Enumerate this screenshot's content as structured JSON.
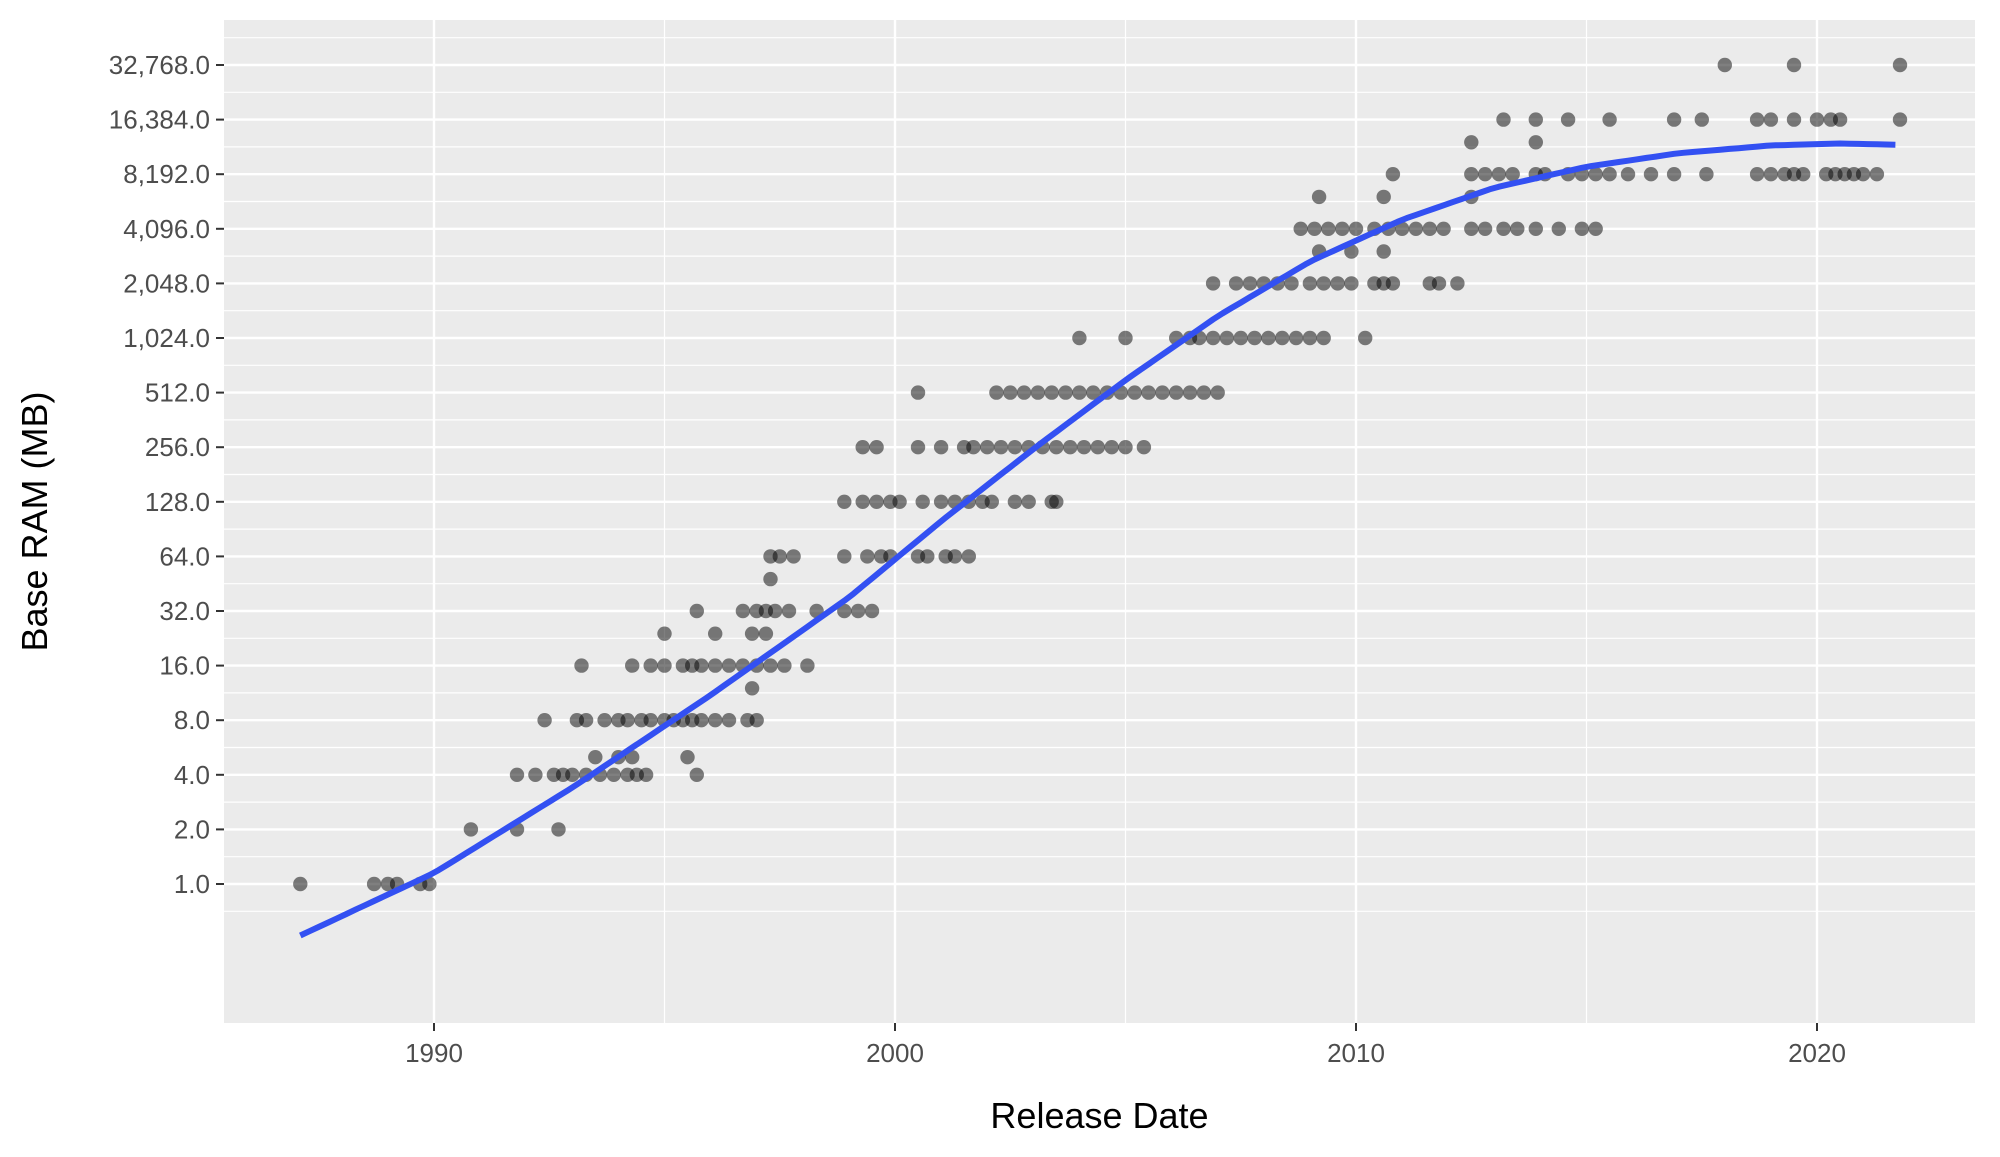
{
  "chart_data": {
    "type": "scatter",
    "xlabel": "Release Date",
    "ylabel": "Base RAM (MB)",
    "x_scale": "date",
    "y_scale": "log2",
    "xlim": [
      1985.5,
      2023.5
    ],
    "ylim": [
      0.3,
      50000
    ],
    "grid": true,
    "x_ticks": [
      1990,
      2000,
      2010,
      2020
    ],
    "x_tick_labels": [
      "1990",
      "2000",
      "2010",
      "2020"
    ],
    "y_ticks": [
      1,
      2,
      4,
      8,
      16,
      32,
      64,
      128,
      256,
      512,
      1024,
      2048,
      4096,
      8192,
      16384,
      32768
    ],
    "y_tick_labels": [
      "1.0",
      "2.0",
      "4.0",
      "8.0",
      "16.0",
      "32.0",
      "64.0",
      "128.0",
      "256.0",
      "512.0",
      "1,024.0",
      "2,048.0",
      "4,096.0",
      "8,192.0",
      "16,384.0",
      "32,768.0"
    ],
    "colors": {
      "panel": "#ebebeb",
      "grid": "#ffffff",
      "points": "#000000",
      "trend": "#3350f2",
      "ribbon": "#999999"
    },
    "points": [
      {
        "year": 1987.1,
        "ram": 1
      },
      {
        "year": 1988.7,
        "ram": 1
      },
      {
        "year": 1989.0,
        "ram": 1
      },
      {
        "year": 1989.2,
        "ram": 1
      },
      {
        "year": 1989.7,
        "ram": 1
      },
      {
        "year": 1989.9,
        "ram": 1
      },
      {
        "year": 1990.8,
        "ram": 2
      },
      {
        "year": 1991.8,
        "ram": 2
      },
      {
        "year": 1992.7,
        "ram": 2
      },
      {
        "year": 1991.8,
        "ram": 4
      },
      {
        "year": 1992.2,
        "ram": 4
      },
      {
        "year": 1992.6,
        "ram": 4
      },
      {
        "year": 1992.8,
        "ram": 4
      },
      {
        "year": 1993.0,
        "ram": 4
      },
      {
        "year": 1993.3,
        "ram": 4
      },
      {
        "year": 1993.6,
        "ram": 4
      },
      {
        "year": 1993.9,
        "ram": 4
      },
      {
        "year": 1994.2,
        "ram": 4
      },
      {
        "year": 1994.4,
        "ram": 4
      },
      {
        "year": 1994.6,
        "ram": 4
      },
      {
        "year": 1995.7,
        "ram": 4
      },
      {
        "year": 1993.5,
        "ram": 5
      },
      {
        "year": 1994.0,
        "ram": 5
      },
      {
        "year": 1994.3,
        "ram": 5
      },
      {
        "year": 1995.5,
        "ram": 5
      },
      {
        "year": 1992.4,
        "ram": 8
      },
      {
        "year": 1993.1,
        "ram": 8
      },
      {
        "year": 1993.3,
        "ram": 8
      },
      {
        "year": 1993.7,
        "ram": 8
      },
      {
        "year": 1994.0,
        "ram": 8
      },
      {
        "year": 1994.2,
        "ram": 8
      },
      {
        "year": 1994.5,
        "ram": 8
      },
      {
        "year": 1994.7,
        "ram": 8
      },
      {
        "year": 1995.0,
        "ram": 8
      },
      {
        "year": 1995.2,
        "ram": 8
      },
      {
        "year": 1995.4,
        "ram": 8
      },
      {
        "year": 1995.6,
        "ram": 8
      },
      {
        "year": 1995.8,
        "ram": 8
      },
      {
        "year": 1996.1,
        "ram": 8
      },
      {
        "year": 1996.4,
        "ram": 8
      },
      {
        "year": 1996.8,
        "ram": 8
      },
      {
        "year": 1997.0,
        "ram": 8
      },
      {
        "year": 1993.2,
        "ram": 16
      },
      {
        "year": 1994.3,
        "ram": 16
      },
      {
        "year": 1994.7,
        "ram": 16
      },
      {
        "year": 1995.0,
        "ram": 16
      },
      {
        "year": 1995.4,
        "ram": 16
      },
      {
        "year": 1995.6,
        "ram": 16
      },
      {
        "year": 1995.8,
        "ram": 16
      },
      {
        "year": 1996.1,
        "ram": 16
      },
      {
        "year": 1996.4,
        "ram": 16
      },
      {
        "year": 1996.7,
        "ram": 16
      },
      {
        "year": 1997.0,
        "ram": 16
      },
      {
        "year": 1997.3,
        "ram": 16
      },
      {
        "year": 1997.6,
        "ram": 16
      },
      {
        "year": 1998.1,
        "ram": 16
      },
      {
        "year": 1996.9,
        "ram": 12
      },
      {
        "year": 1995.0,
        "ram": 24
      },
      {
        "year": 1996.1,
        "ram": 24
      },
      {
        "year": 1996.9,
        "ram": 24
      },
      {
        "year": 1997.2,
        "ram": 24
      },
      {
        "year": 1995.7,
        "ram": 32
      },
      {
        "year": 1996.7,
        "ram": 32
      },
      {
        "year": 1997.0,
        "ram": 32
      },
      {
        "year": 1997.2,
        "ram": 32
      },
      {
        "year": 1997.4,
        "ram": 32
      },
      {
        "year": 1997.7,
        "ram": 32
      },
      {
        "year": 1998.3,
        "ram": 32
      },
      {
        "year": 1998.9,
        "ram": 32
      },
      {
        "year": 1999.2,
        "ram": 32
      },
      {
        "year": 1999.5,
        "ram": 32
      },
      {
        "year": 1997.3,
        "ram": 48
      },
      {
        "year": 1997.3,
        "ram": 64
      },
      {
        "year": 1997.5,
        "ram": 64
      },
      {
        "year": 1997.8,
        "ram": 64
      },
      {
        "year": 1998.9,
        "ram": 64
      },
      {
        "year": 1999.4,
        "ram": 64
      },
      {
        "year": 1999.7,
        "ram": 64
      },
      {
        "year": 1999.9,
        "ram": 64
      },
      {
        "year": 2000.5,
        "ram": 64
      },
      {
        "year": 2000.7,
        "ram": 64
      },
      {
        "year": 2001.1,
        "ram": 64
      },
      {
        "year": 2001.3,
        "ram": 64
      },
      {
        "year": 2001.6,
        "ram": 64
      },
      {
        "year": 1998.9,
        "ram": 128
      },
      {
        "year": 1999.3,
        "ram": 128
      },
      {
        "year": 1999.6,
        "ram": 128
      },
      {
        "year": 1999.9,
        "ram": 128
      },
      {
        "year": 2000.1,
        "ram": 128
      },
      {
        "year": 2000.6,
        "ram": 128
      },
      {
        "year": 2001.0,
        "ram": 128
      },
      {
        "year": 2001.3,
        "ram": 128
      },
      {
        "year": 2001.6,
        "ram": 128
      },
      {
        "year": 2001.9,
        "ram": 128
      },
      {
        "year": 2002.1,
        "ram": 128
      },
      {
        "year": 2002.6,
        "ram": 128
      },
      {
        "year": 2002.9,
        "ram": 128
      },
      {
        "year": 2003.4,
        "ram": 128
      },
      {
        "year": 2003.5,
        "ram": 128
      },
      {
        "year": 1999.3,
        "ram": 256
      },
      {
        "year": 1999.6,
        "ram": 256
      },
      {
        "year": 2000.5,
        "ram": 256
      },
      {
        "year": 2001.0,
        "ram": 256
      },
      {
        "year": 2001.5,
        "ram": 256
      },
      {
        "year": 2001.7,
        "ram": 256
      },
      {
        "year": 2002.0,
        "ram": 256
      },
      {
        "year": 2002.3,
        "ram": 256
      },
      {
        "year": 2002.6,
        "ram": 256
      },
      {
        "year": 2002.9,
        "ram": 256
      },
      {
        "year": 2003.2,
        "ram": 256
      },
      {
        "year": 2003.5,
        "ram": 256
      },
      {
        "year": 2003.8,
        "ram": 256
      },
      {
        "year": 2004.1,
        "ram": 256
      },
      {
        "year": 2004.4,
        "ram": 256
      },
      {
        "year": 2004.7,
        "ram": 256
      },
      {
        "year": 2005.0,
        "ram": 256
      },
      {
        "year": 2005.4,
        "ram": 256
      },
      {
        "year": 2000.5,
        "ram": 512
      },
      {
        "year": 2002.2,
        "ram": 512
      },
      {
        "year": 2002.5,
        "ram": 512
      },
      {
        "year": 2002.8,
        "ram": 512
      },
      {
        "year": 2003.1,
        "ram": 512
      },
      {
        "year": 2003.4,
        "ram": 512
      },
      {
        "year": 2003.7,
        "ram": 512
      },
      {
        "year": 2004.0,
        "ram": 512
      },
      {
        "year": 2004.3,
        "ram": 512
      },
      {
        "year": 2004.6,
        "ram": 512
      },
      {
        "year": 2004.9,
        "ram": 512
      },
      {
        "year": 2005.2,
        "ram": 512
      },
      {
        "year": 2005.5,
        "ram": 512
      },
      {
        "year": 2005.8,
        "ram": 512
      },
      {
        "year": 2006.1,
        "ram": 512
      },
      {
        "year": 2006.4,
        "ram": 512
      },
      {
        "year": 2006.7,
        "ram": 512
      },
      {
        "year": 2007.0,
        "ram": 512
      },
      {
        "year": 2004.0,
        "ram": 1024
      },
      {
        "year": 2005.0,
        "ram": 1024
      },
      {
        "year": 2006.1,
        "ram": 1024
      },
      {
        "year": 2006.4,
        "ram": 1024
      },
      {
        "year": 2006.6,
        "ram": 1024
      },
      {
        "year": 2006.9,
        "ram": 1024
      },
      {
        "year": 2007.2,
        "ram": 1024
      },
      {
        "year": 2007.5,
        "ram": 1024
      },
      {
        "year": 2007.8,
        "ram": 1024
      },
      {
        "year": 2008.1,
        "ram": 1024
      },
      {
        "year": 2008.4,
        "ram": 1024
      },
      {
        "year": 2008.7,
        "ram": 1024
      },
      {
        "year": 2009.0,
        "ram": 1024
      },
      {
        "year": 2009.3,
        "ram": 1024
      },
      {
        "year": 2010.2,
        "ram": 1024
      },
      {
        "year": 2006.9,
        "ram": 2048
      },
      {
        "year": 2007.4,
        "ram": 2048
      },
      {
        "year": 2007.7,
        "ram": 2048
      },
      {
        "year": 2008.0,
        "ram": 2048
      },
      {
        "year": 2008.3,
        "ram": 2048
      },
      {
        "year": 2008.6,
        "ram": 2048
      },
      {
        "year": 2009.0,
        "ram": 2048
      },
      {
        "year": 2009.3,
        "ram": 2048
      },
      {
        "year": 2009.6,
        "ram": 2048
      },
      {
        "year": 2009.9,
        "ram": 2048
      },
      {
        "year": 2010.4,
        "ram": 2048
      },
      {
        "year": 2010.6,
        "ram": 2048
      },
      {
        "year": 2010.8,
        "ram": 2048
      },
      {
        "year": 2011.6,
        "ram": 2048
      },
      {
        "year": 2011.8,
        "ram": 2048
      },
      {
        "year": 2012.2,
        "ram": 2048
      },
      {
        "year": 2009.2,
        "ram": 3072
      },
      {
        "year": 2009.9,
        "ram": 3072
      },
      {
        "year": 2010.6,
        "ram": 3072
      },
      {
        "year": 2008.8,
        "ram": 4096
      },
      {
        "year": 2009.1,
        "ram": 4096
      },
      {
        "year": 2009.4,
        "ram": 4096
      },
      {
        "year": 2009.7,
        "ram": 4096
      },
      {
        "year": 2010.0,
        "ram": 4096
      },
      {
        "year": 2010.4,
        "ram": 4096
      },
      {
        "year": 2010.7,
        "ram": 4096
      },
      {
        "year": 2011.0,
        "ram": 4096
      },
      {
        "year": 2011.3,
        "ram": 4096
      },
      {
        "year": 2011.6,
        "ram": 4096
      },
      {
        "year": 2011.9,
        "ram": 4096
      },
      {
        "year": 2012.5,
        "ram": 4096
      },
      {
        "year": 2012.8,
        "ram": 4096
      },
      {
        "year": 2013.2,
        "ram": 4096
      },
      {
        "year": 2013.5,
        "ram": 4096
      },
      {
        "year": 2013.9,
        "ram": 4096
      },
      {
        "year": 2014.4,
        "ram": 4096
      },
      {
        "year": 2014.9,
        "ram": 4096
      },
      {
        "year": 2015.2,
        "ram": 4096
      },
      {
        "year": 2009.2,
        "ram": 6144
      },
      {
        "year": 2010.6,
        "ram": 6144
      },
      {
        "year": 2012.5,
        "ram": 6144
      },
      {
        "year": 2010.8,
        "ram": 8192
      },
      {
        "year": 2012.5,
        "ram": 8192
      },
      {
        "year": 2012.8,
        "ram": 8192
      },
      {
        "year": 2013.1,
        "ram": 8192
      },
      {
        "year": 2013.4,
        "ram": 8192
      },
      {
        "year": 2013.9,
        "ram": 8192
      },
      {
        "year": 2014.1,
        "ram": 8192
      },
      {
        "year": 2014.6,
        "ram": 8192
      },
      {
        "year": 2014.9,
        "ram": 8192
      },
      {
        "year": 2015.2,
        "ram": 8192
      },
      {
        "year": 2015.5,
        "ram": 8192
      },
      {
        "year": 2015.9,
        "ram": 8192
      },
      {
        "year": 2016.4,
        "ram": 8192
      },
      {
        "year": 2016.9,
        "ram": 8192
      },
      {
        "year": 2017.6,
        "ram": 8192
      },
      {
        "year": 2018.7,
        "ram": 8192
      },
      {
        "year": 2019.0,
        "ram": 8192
      },
      {
        "year": 2019.3,
        "ram": 8192
      },
      {
        "year": 2019.5,
        "ram": 8192
      },
      {
        "year": 2019.7,
        "ram": 8192
      },
      {
        "year": 2020.2,
        "ram": 8192
      },
      {
        "year": 2020.4,
        "ram": 8192
      },
      {
        "year": 2020.6,
        "ram": 8192
      },
      {
        "year": 2020.8,
        "ram": 8192
      },
      {
        "year": 2021.0,
        "ram": 8192
      },
      {
        "year": 2021.3,
        "ram": 8192
      },
      {
        "year": 2012.5,
        "ram": 12288
      },
      {
        "year": 2013.9,
        "ram": 12288
      },
      {
        "year": 2013.2,
        "ram": 16384
      },
      {
        "year": 2013.9,
        "ram": 16384
      },
      {
        "year": 2014.6,
        "ram": 16384
      },
      {
        "year": 2015.5,
        "ram": 16384
      },
      {
        "year": 2016.9,
        "ram": 16384
      },
      {
        "year": 2017.5,
        "ram": 16384
      },
      {
        "year": 2018.7,
        "ram": 16384
      },
      {
        "year": 2019.0,
        "ram": 16384
      },
      {
        "year": 2019.5,
        "ram": 16384
      },
      {
        "year": 2020.0,
        "ram": 16384
      },
      {
        "year": 2020.3,
        "ram": 16384
      },
      {
        "year": 2020.5,
        "ram": 16384
      },
      {
        "year": 2021.8,
        "ram": 16384
      },
      {
        "year": 2018.0,
        "ram": 32768
      },
      {
        "year": 2019.5,
        "ram": 32768
      },
      {
        "year": 2021.8,
        "ram": 32768
      }
    ],
    "trend": [
      {
        "year": 1987.1,
        "ram": 0.52
      },
      {
        "year": 1990,
        "ram": 1.15
      },
      {
        "year": 1993,
        "ram": 3.4
      },
      {
        "year": 1996,
        "ram": 11
      },
      {
        "year": 1999,
        "ram": 38
      },
      {
        "year": 2001,
        "ram": 100
      },
      {
        "year": 2003,
        "ram": 250
      },
      {
        "year": 2005,
        "ram": 600
      },
      {
        "year": 2007,
        "ram": 1350
      },
      {
        "year": 2009,
        "ram": 2700
      },
      {
        "year": 2011,
        "ram": 4600
      },
      {
        "year": 2013,
        "ram": 6900
      },
      {
        "year": 2015,
        "ram": 9000
      },
      {
        "year": 2017,
        "ram": 10700
      },
      {
        "year": 2019,
        "ram": 11800
      },
      {
        "year": 2020.5,
        "ram": 12100
      },
      {
        "year": 2021.8,
        "ram": 11900
      }
    ],
    "trend_se_factor": [
      {
        "year": 1987.1,
        "f": 1.25
      },
      {
        "year": 1990,
        "f": 1.12
      },
      {
        "year": 1995,
        "f": 1.04
      },
      {
        "year": 2010,
        "f": 1.04
      },
      {
        "year": 2018,
        "f": 1.06
      },
      {
        "year": 2021.8,
        "f": 1.12
      }
    ]
  }
}
